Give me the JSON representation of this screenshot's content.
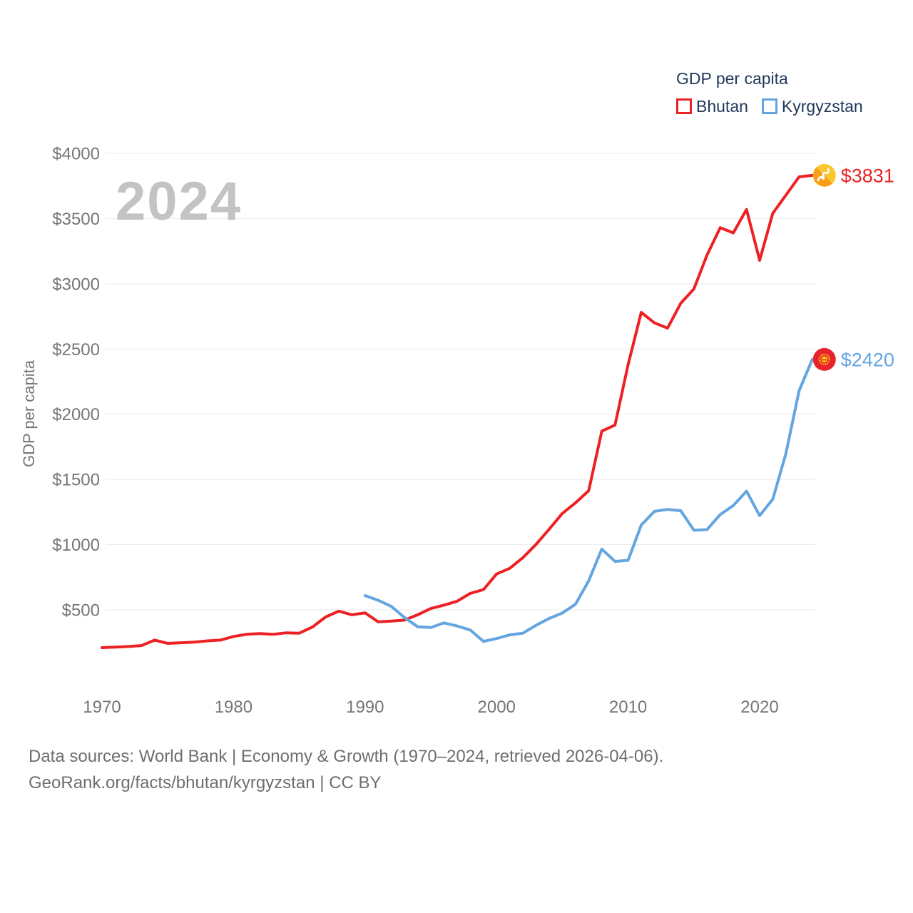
{
  "legend": {
    "title": "GDP per capita",
    "series": [
      {
        "label": "Bhutan",
        "color": "#ed2124"
      },
      {
        "label": "Kyrgyzstan",
        "color": "#64a5e0"
      }
    ]
  },
  "watermark": "2024",
  "footer": {
    "line1": "Data sources: World Bank | Economy & Growth (1970–2024, retrieved 2026-04-06).",
    "line2": "GeoRank.org/facts/bhutan/kyrgyzstan | CC BY"
  },
  "chart_data": {
    "type": "line",
    "title": "GDP per capita",
    "ylabel": "GDP per capita",
    "ylim": [
      0,
      4000
    ],
    "yticks": [
      500,
      1000,
      1500,
      2000,
      2500,
      3000,
      3500,
      4000
    ],
    "ytick_prefix": "$",
    "xticks": [
      1970,
      1980,
      1990,
      2000,
      2010,
      2020
    ],
    "grid": true,
    "legend_position": "top-right",
    "grid_color": "#eaeaea",
    "tick_color": "#767676",
    "series": [
      {
        "name": "Bhutan",
        "color": "#ed2124",
        "end_label": "$3831",
        "flag": "bhutan",
        "x": [
          1970,
          1971,
          1972,
          1973,
          1974,
          1975,
          1976,
          1977,
          1978,
          1979,
          1980,
          1981,
          1982,
          1983,
          1984,
          1985,
          1986,
          1987,
          1988,
          1989,
          1990,
          1991,
          1992,
          1993,
          1994,
          1995,
          1996,
          1997,
          1998,
          1999,
          2000,
          2001,
          2002,
          2003,
          2004,
          2005,
          2006,
          2007,
          2008,
          2009,
          2010,
          2011,
          2012,
          2013,
          2014,
          2015,
          2016,
          2017,
          2018,
          2019,
          2020,
          2021,
          2022,
          2023,
          2024
        ],
        "values": [
          210,
          214,
          219,
          226,
          268,
          243,
          248,
          252,
          262,
          268,
          296,
          312,
          318,
          312,
          324,
          321,
          368,
          445,
          490,
          462,
          477,
          408,
          414,
          421,
          462,
          510,
          536,
          566,
          626,
          655,
          775,
          818,
          900,
          1002,
          1119,
          1239,
          1320,
          1413,
          1870,
          1917,
          2380,
          2780,
          2700,
          2660,
          2850,
          2960,
          3220,
          3430,
          3390,
          3570,
          3180,
          3540,
          3680,
          3820,
          3831
        ]
      },
      {
        "name": "Kyrgyzstan",
        "color": "#64a5e0",
        "end_label": "$2420",
        "flag": "kyrgyzstan",
        "x": [
          1990,
          1991,
          1992,
          1993,
          1994,
          1995,
          1996,
          1997,
          1998,
          1999,
          2000,
          2001,
          2002,
          2003,
          2004,
          2005,
          2006,
          2007,
          2008,
          2009,
          2010,
          2011,
          2012,
          2013,
          2014,
          2015,
          2016,
          2017,
          2018,
          2019,
          2020,
          2021,
          2022,
          2023,
          2024
        ],
        "values": [
          609,
          573,
          526,
          441,
          370,
          364,
          400,
          376,
          345,
          258,
          280,
          308,
          321,
          381,
          434,
          476,
          543,
          722,
          966,
          871,
          880,
          1150,
          1255,
          1270,
          1260,
          1110,
          1115,
          1230,
          1300,
          1410,
          1222,
          1348,
          1700,
          2180,
          2420
        ]
      }
    ]
  }
}
